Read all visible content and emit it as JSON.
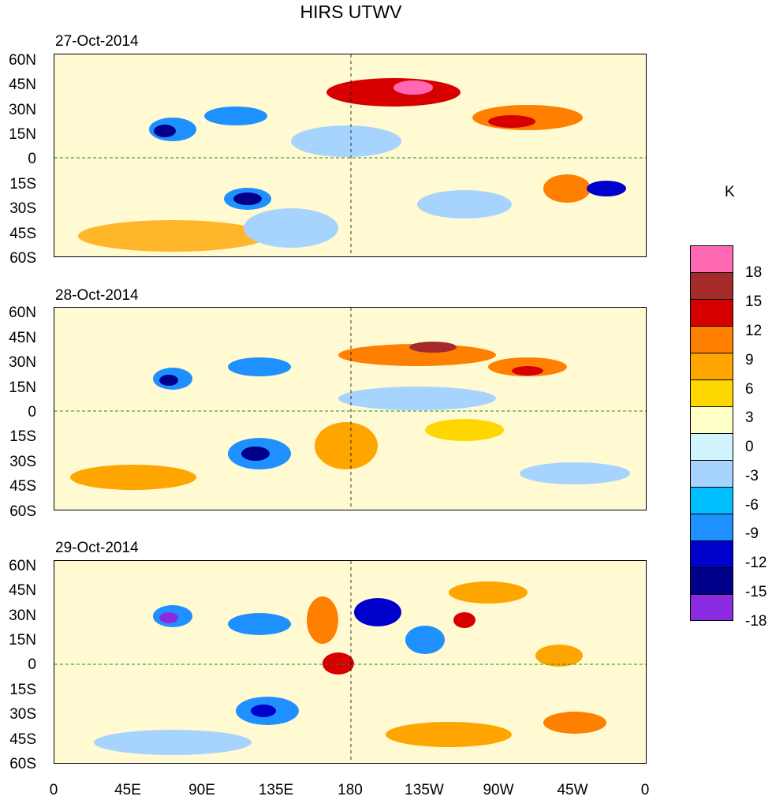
{
  "title": "HIRS UTWV",
  "units": "K",
  "panels": [
    {
      "date": "27-Oct-2014"
    },
    {
      "date": "28-Oct-2014"
    },
    {
      "date": "29-Oct-2014"
    }
  ],
  "lat_labels": [
    "60N",
    "45N",
    "30N",
    "15N",
    "0",
    "15S",
    "30S",
    "45S",
    "60S"
  ],
  "lon_labels": [
    "0",
    "45E",
    "90E",
    "135E",
    "180",
    "135W",
    "90W",
    "45W",
    "0"
  ],
  "colorbar": {
    "levels": [
      "18",
      "15",
      "12",
      "9",
      "6",
      "3",
      "0",
      "-3",
      "-6",
      "-9",
      "-12",
      "-15",
      "-18"
    ],
    "colors": [
      "#ff69b4",
      "#a52a2a",
      "#d70000",
      "#ff7f00",
      "#ffa500",
      "#ffd700",
      "#ffffc8",
      "#d2f4ff",
      "#a7d3ff",
      "#00bfff",
      "#1e90ff",
      "#0000cd",
      "#00008b",
      "#8a2be2"
    ]
  },
  "colors": {
    "coast": "#228b22",
    "background_field": "#fffad2"
  }
}
